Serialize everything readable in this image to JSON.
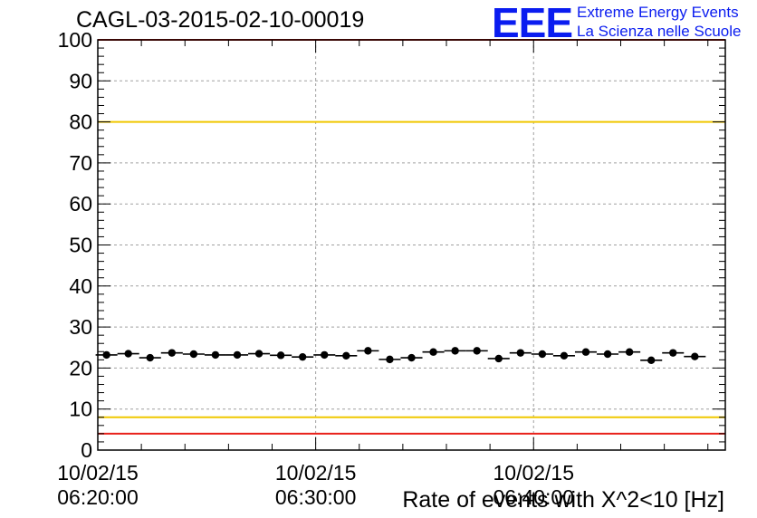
{
  "header": {
    "run_id": "CAGL-03-2015-02-10-00019",
    "logo_mark": "EEE",
    "logo_line1": "Extreme Energy Events",
    "logo_line2": "La Scienza nelle Scuole"
  },
  "colors": {
    "red_limit": "#e8201a",
    "yellow_limit": "#f0c800",
    "logo": "#0a1cf0",
    "points": "#000000"
  },
  "chart_data": {
    "type": "scatter",
    "title": "CAGL-03-2015-02-10-00019",
    "xlabel": "Rate of events with X^2<10 [Hz]",
    "ylabel": "",
    "x_unit": "minutes after 10/02/15 06:20:00",
    "xlim": [
      0,
      28.8
    ],
    "ylim": [
      0,
      100
    ],
    "grid": true,
    "y_ticks": [
      0,
      10,
      20,
      30,
      40,
      50,
      60,
      70,
      80,
      90,
      100
    ],
    "y_tick_labels": [
      "0",
      "10",
      "20",
      "30",
      "40",
      "50",
      "60",
      "70",
      "80",
      "90",
      "100"
    ],
    "x_ticks": [
      {
        "date": "10/02/15",
        "time": "06:20:00"
      },
      {
        "date": "10/02/15",
        "time": "06:30:00"
      },
      {
        "date": "10/02/15",
        "time": "06:40:00"
      }
    ],
    "limits": {
      "red": [
        4,
        100
      ],
      "yellow": [
        8,
        80
      ]
    },
    "points": [
      {
        "x": 0.4,
        "y": 23.2
      },
      {
        "x": 1.4,
        "y": 23.5
      },
      {
        "x": 2.4,
        "y": 22.5
      },
      {
        "x": 3.4,
        "y": 23.7
      },
      {
        "x": 4.4,
        "y": 23.4
      },
      {
        "x": 5.4,
        "y": 23.2
      },
      {
        "x": 6.4,
        "y": 23.2
      },
      {
        "x": 7.4,
        "y": 23.5
      },
      {
        "x": 8.4,
        "y": 23.1
      },
      {
        "x": 9.4,
        "y": 22.7
      },
      {
        "x": 10.4,
        "y": 23.2
      },
      {
        "x": 11.4,
        "y": 23.0
      },
      {
        "x": 12.4,
        "y": 24.2
      },
      {
        "x": 13.4,
        "y": 22.1
      },
      {
        "x": 14.4,
        "y": 22.5
      },
      {
        "x": 15.4,
        "y": 23.9
      },
      {
        "x": 16.4,
        "y": 24.2
      },
      {
        "x": 17.4,
        "y": 24.2
      },
      {
        "x": 18.4,
        "y": 22.3
      },
      {
        "x": 19.4,
        "y": 23.7
      },
      {
        "x": 20.4,
        "y": 23.4
      },
      {
        "x": 21.4,
        "y": 23.0
      },
      {
        "x": 22.4,
        "y": 23.9
      },
      {
        "x": 23.4,
        "y": 23.4
      },
      {
        "x": 24.4,
        "y": 23.9
      },
      {
        "x": 25.4,
        "y": 21.9
      },
      {
        "x": 26.4,
        "y": 23.7
      },
      {
        "x": 27.4,
        "y": 22.8
      }
    ]
  }
}
